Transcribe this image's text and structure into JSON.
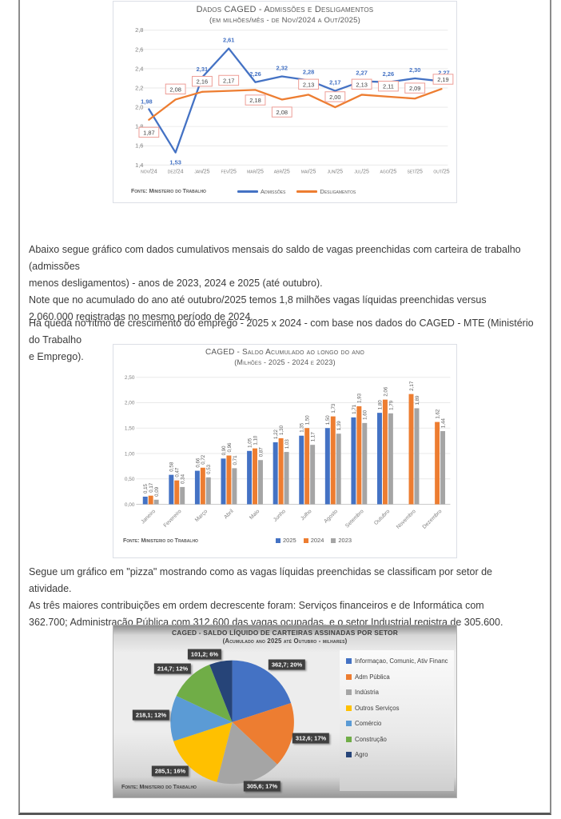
{
  "paragraphs": {
    "p1": "Abaixo segue gráfico com dados cumulativos mensais do saldo de vagas preenchidas com carteira de trabalho (admissões\nmenos desligamentos) - anos de 2023, 2024 e 2025 (até outubro).\nNote que no acumulado do ano até outubro/2025 temos 1,8 milhões vagas líquidas preenchidas versus\n2.060.000 registradas no mesmo período de 2024.",
    "p2": "Há queda no ritmo de crescimento do emprego - 2025 x 2024 - com base nos dados do CAGED - MTE (Ministério do Trabalho\ne Emprego).",
    "p3": "Segue um gráfico em \"pizza\" mostrando como as vagas líquidas preenchidas se classificam por setor de atividade.\nAs três maiores contribuições em ordem decrescente foram: Serviços financeiros e de Informática com\n362.700; Administração Pública com 312.600 das vagas ocupadas, e o setor Industrial registra de 305.600."
  },
  "chart_data": [
    {
      "type": "line",
      "title": "Dados CAGED - Admissões e Desligamentos",
      "subtitle": "(em milhões/mês - de Nov/2024 a Out/2025)",
      "categories": [
        "nov/24",
        "dez/24",
        "jan/25",
        "fev/25",
        "mar/25",
        "abr/25",
        "mai/25",
        "jun/25",
        "jul/25",
        "ago/25",
        "set/25",
        "out/25"
      ],
      "ylim": [
        1.4,
        2.8
      ],
      "yticks": [
        "1,4",
        "1,6",
        "1,8",
        "2,0",
        "2,2",
        "2,4",
        "2,6",
        "2,8"
      ],
      "grid": true,
      "legend_position": "bottom",
      "series": [
        {
          "name": "Admissões",
          "color": "#4472C4",
          "values": [
            1.98,
            1.53,
            2.31,
            2.61,
            2.26,
            2.32,
            2.28,
            2.17,
            2.27,
            2.26,
            2.3,
            2.27
          ],
          "labels": [
            "1,98",
            "1,53",
            "2,31",
            "2,61",
            "2,26",
            "2,32",
            "2,28",
            "2,17",
            "2,27",
            "2,26",
            "2,30",
            "2,27"
          ]
        },
        {
          "name": "Desligamentos",
          "color": "#ED7D31",
          "values": [
            1.87,
            2.08,
            2.16,
            2.17,
            2.18,
            2.08,
            2.13,
            2.0,
            2.13,
            2.11,
            2.09,
            2.19
          ],
          "labels": [
            "1,87",
            "2,08",
            "2,16",
            "2,17",
            "2,18",
            "2,08",
            "2,13",
            "2,00",
            "2,13",
            "2,11",
            "2,09",
            "2,19"
          ]
        }
      ],
      "fonte": "Fonte: Ministerio do Trabalho"
    },
    {
      "type": "bar",
      "title": "CAGED - Saldo Acumulado ao longo do ano",
      "subtitle": "(Milhões - 2025 - 2024 e 2023)",
      "categories": [
        "Janeiro",
        "Fevereiro",
        "Março",
        "Abril",
        "Maio",
        "Junho",
        "Julho",
        "Agosto",
        "Setembro",
        "Outubro",
        "Novembro",
        "Dezembro"
      ],
      "ylim": [
        0,
        2.5
      ],
      "yticks": [
        "0,00",
        "0,50",
        "1,00",
        "1,50",
        "2,00",
        "2,50"
      ],
      "grid": true,
      "legend_position": "bottom",
      "series": [
        {
          "name": "2025",
          "color": "#4472C4",
          "values": [
            0.15,
            0.58,
            0.66,
            0.9,
            1.05,
            1.22,
            1.35,
            1.5,
            1.71,
            1.8,
            null,
            null
          ],
          "labels": [
            "0,15",
            "0,58",
            "0,66",
            "0,90",
            "1,05",
            "1,22",
            "1,35",
            "1,50",
            "1,71",
            "1,80",
            "",
            ""
          ]
        },
        {
          "name": "2024",
          "color": "#ED7D31",
          "values": [
            0.17,
            0.47,
            0.72,
            0.96,
            1.1,
            1.3,
            1.5,
            1.73,
            1.93,
            2.06,
            2.17,
            1.62
          ],
          "labels": [
            "0,17",
            "0,47",
            "0,72",
            "0,96",
            "1,10",
            "1,30",
            "1,50",
            "1,73",
            "1,93",
            "2,06",
            "2,17",
            "1,62"
          ]
        },
        {
          "name": "2023",
          "color": "#A5A5A5",
          "values": [
            0.09,
            0.34,
            0.53,
            0.71,
            0.87,
            1.03,
            1.17,
            1.39,
            1.6,
            1.79,
            1.89,
            1.44
          ],
          "labels": [
            "0,09",
            "0,34",
            "0,53",
            "0,71",
            "0,87",
            "1,03",
            "1,17",
            "1,39",
            "1,60",
            "1,79",
            "1,89",
            "1,44"
          ]
        }
      ],
      "fonte": "Fonte: Ministerio do Trabalho"
    },
    {
      "type": "pie",
      "title": "CAGED - SALDO LÍQUIDO DE CARTEIRAS ASSINADAS POR SETOR",
      "subtitle": "(Acumulado ano 2025 até Outubro - milhares)",
      "legend_position": "right",
      "slices": [
        {
          "name": "Informaçao, Comunic, Ativ Financ",
          "value": 362.7,
          "pct": 20,
          "label": "362,7; 20%",
          "color": "#4472C4"
        },
        {
          "name": "Adm Pública",
          "value": 312.6,
          "pct": 17,
          "label": "312,6; 17%",
          "color": "#ED7D31"
        },
        {
          "name": "Indústria",
          "value": 305.6,
          "pct": 17,
          "label": "305,6; 17%",
          "color": "#A5A5A5"
        },
        {
          "name": "Outros Serviços",
          "value": 285.1,
          "pct": 16,
          "label": "285,1; 16%",
          "color": "#FFC000"
        },
        {
          "name": "Comércio",
          "value": 218.1,
          "pct": 12,
          "label": "218,1; 12%",
          "color": "#5B9BD5"
        },
        {
          "name": "Construção",
          "value": 214.7,
          "pct": 12,
          "label": "214,7; 12%",
          "color": "#70AD47"
        },
        {
          "name": "Agro",
          "value": 101.2,
          "pct": 6,
          "label": "101,2; 6%",
          "color": "#264478"
        }
      ],
      "fonte": "Fonte: Ministerio do Trabalho"
    }
  ]
}
